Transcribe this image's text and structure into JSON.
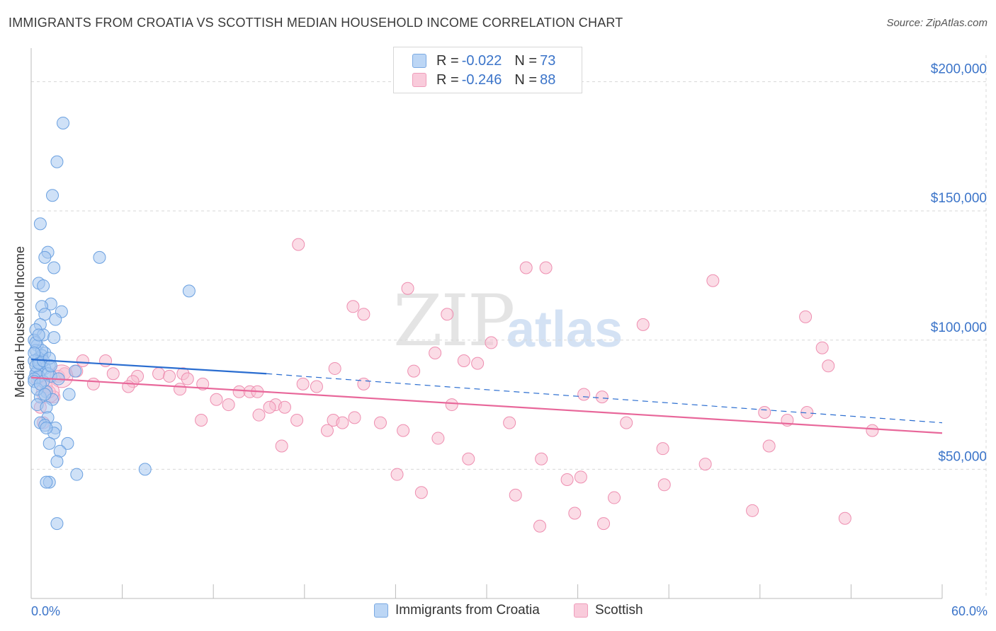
{
  "title": "IMMIGRANTS FROM CROATIA VS SCOTTISH MEDIAN HOUSEHOLD INCOME CORRELATION CHART",
  "source": "Source: ZipAtlas.com",
  "watermark": {
    "zip": "ZIP",
    "atlas": "atlas"
  },
  "legend": {
    "rows": [
      {
        "r_label": "R =",
        "r_value": "-0.022",
        "n_label": "N =",
        "n_value": "73"
      },
      {
        "r_label": "R =",
        "r_value": "-0.246",
        "n_label": "N =",
        "n_value": "88"
      }
    ]
  },
  "bottom_legend": [
    "Immigrants from Croatia",
    "Scottish"
  ],
  "colors": {
    "blue_fill": "#a8c8f0",
    "blue_stroke": "#6aa0e0",
    "blue_line": "#2a6dd0",
    "pink_fill": "#f7bfd2",
    "pink_stroke": "#ee8eb0",
    "pink_line": "#e8679a",
    "grid": "#d8d8d8",
    "axis_label": "#3b74c9"
  },
  "chart_data": {
    "type": "scatter",
    "title": "IMMIGRANTS FROM CROATIA VS SCOTTISH MEDIAN HOUSEHOLD INCOME CORRELATION CHART",
    "xlabel": "",
    "ylabel": "Median Household Income",
    "xlim": [
      0,
      60
    ],
    "ylim": [
      0,
      210000
    ],
    "x_tick_labels": [
      "0.0%",
      "60.0%"
    ],
    "y_ticks": [
      50000,
      100000,
      150000,
      200000
    ],
    "y_tick_labels": [
      "$50,000",
      "$100,000",
      "$150,000",
      "$200,000"
    ],
    "grid": true,
    "series": [
      {
        "name": "Immigrants from Croatia",
        "R": -0.022,
        "N": 73,
        "trend": {
          "x": [
            0,
            15.5
          ],
          "y": [
            92500,
            87000
          ],
          "dashed_to": [
            60,
            68000
          ]
        },
        "points": [
          [
            2.1,
            184000
          ],
          [
            1.7,
            169000
          ],
          [
            1.4,
            156000
          ],
          [
            0.6,
            145000
          ],
          [
            1.1,
            134000
          ],
          [
            0.9,
            132000
          ],
          [
            4.5,
            132000
          ],
          [
            1.5,
            128000
          ],
          [
            0.5,
            122000
          ],
          [
            0.8,
            121000
          ],
          [
            10.4,
            119000
          ],
          [
            1.3,
            114000
          ],
          [
            0.7,
            113000
          ],
          [
            2.0,
            111000
          ],
          [
            0.9,
            110000
          ],
          [
            1.6,
            108000
          ],
          [
            0.6,
            106000
          ],
          [
            0.3,
            104000
          ],
          [
            0.8,
            102000
          ],
          [
            1.5,
            101000
          ],
          [
            0.2,
            100000
          ],
          [
            0.4,
            98000
          ],
          [
            0.3,
            96000
          ],
          [
            0.9,
            95000
          ],
          [
            0.7,
            94000
          ],
          [
            0.5,
            93000
          ],
          [
            0.2,
            92000
          ],
          [
            0.6,
            91000
          ],
          [
            1.2,
            90000
          ],
          [
            0.9,
            89000
          ],
          [
            0.4,
            88000
          ],
          [
            2.9,
            88000
          ],
          [
            0.3,
            87000
          ],
          [
            1.3,
            86000
          ],
          [
            0.5,
            86000
          ],
          [
            0.2,
            85000
          ],
          [
            1.8,
            85000
          ],
          [
            0.8,
            84000
          ],
          [
            1.0,
            80000
          ],
          [
            2.5,
            79000
          ],
          [
            0.6,
            78000
          ],
          [
            1.4,
            77000
          ],
          [
            0.4,
            75000
          ],
          [
            1.0,
            74000
          ],
          [
            1.1,
            70000
          ],
          [
            0.6,
            68000
          ],
          [
            0.9,
            67000
          ],
          [
            1.6,
            66000
          ],
          [
            1.5,
            64000
          ],
          [
            1.2,
            60000
          ],
          [
            2.4,
            60000
          ],
          [
            1.9,
            57000
          ],
          [
            1.7,
            53000
          ],
          [
            7.5,
            50000
          ],
          [
            3.0,
            48000
          ],
          [
            1.2,
            45000
          ],
          [
            1.0,
            45000
          ],
          [
            1.7,
            29000
          ],
          [
            0.3,
            90000
          ],
          [
            0.5,
            91000
          ],
          [
            0.2,
            84000
          ],
          [
            0.8,
            92000
          ],
          [
            1.1,
            87000
          ],
          [
            0.4,
            81000
          ],
          [
            0.7,
            96000
          ],
          [
            0.3,
            99000
          ],
          [
            1.2,
            93000
          ],
          [
            0.6,
            83000
          ],
          [
            0.9,
            79000
          ],
          [
            1.0,
            66000
          ],
          [
            0.5,
            102000
          ],
          [
            0.2,
            95000
          ],
          [
            1.3,
            90000
          ]
        ]
      },
      {
        "name": "Scottish",
        "R": -0.246,
        "N": 88,
        "trend": {
          "x": [
            0,
            60
          ],
          "y": [
            85500,
            64000
          ]
        },
        "points": [
          [
            17.6,
            137000
          ],
          [
            32.6,
            128000
          ],
          [
            33.9,
            128000
          ],
          [
            24.8,
            120000
          ],
          [
            44.9,
            123000
          ],
          [
            21.2,
            113000
          ],
          [
            21.9,
            110000
          ],
          [
            27.4,
            110000
          ],
          [
            51.0,
            109000
          ],
          [
            40.3,
            106000
          ],
          [
            30.3,
            99000
          ],
          [
            52.1,
            97000
          ],
          [
            26.6,
            95000
          ],
          [
            28.5,
            92000
          ],
          [
            29.4,
            91000
          ],
          [
            52.5,
            90000
          ],
          [
            3.4,
            92000
          ],
          [
            4.9,
            92000
          ],
          [
            20.0,
            89000
          ],
          [
            25.2,
            88000
          ],
          [
            3.0,
            88000
          ],
          [
            8.4,
            87000
          ],
          [
            10.0,
            87000
          ],
          [
            5.4,
            87000
          ],
          [
            9.1,
            86000
          ],
          [
            7.0,
            86000
          ],
          [
            1.8,
            86000
          ],
          [
            6.7,
            84000
          ],
          [
            10.3,
            85000
          ],
          [
            4.1,
            83000
          ],
          [
            11.3,
            83000
          ],
          [
            17.9,
            83000
          ],
          [
            21.9,
            83000
          ],
          [
            18.8,
            82000
          ],
          [
            6.4,
            82000
          ],
          [
            9.8,
            81000
          ],
          [
            13.7,
            80000
          ],
          [
            14.4,
            80000
          ],
          [
            14.9,
            80000
          ],
          [
            36.4,
            79000
          ],
          [
            37.6,
            78000
          ],
          [
            12.2,
            77000
          ],
          [
            13.0,
            75000
          ],
          [
            16.1,
            75000
          ],
          [
            16.7,
            74000
          ],
          [
            15.7,
            74000
          ],
          [
            27.7,
            75000
          ],
          [
            48.3,
            72000
          ],
          [
            51.1,
            72000
          ],
          [
            15.0,
            71000
          ],
          [
            17.5,
            69000
          ],
          [
            19.9,
            69000
          ],
          [
            21.3,
            70000
          ],
          [
            23.0,
            68000
          ],
          [
            11.2,
            69000
          ],
          [
            20.5,
            68000
          ],
          [
            31.5,
            68000
          ],
          [
            39.2,
            68000
          ],
          [
            49.8,
            69000
          ],
          [
            19.5,
            65000
          ],
          [
            24.5,
            65000
          ],
          [
            26.8,
            62000
          ],
          [
            55.4,
            65000
          ],
          [
            16.5,
            59000
          ],
          [
            48.6,
            59000
          ],
          [
            41.6,
            58000
          ],
          [
            28.8,
            54000
          ],
          [
            33.6,
            54000
          ],
          [
            44.4,
            52000
          ],
          [
            24.1,
            48000
          ],
          [
            35.3,
            46000
          ],
          [
            36.2,
            47000
          ],
          [
            41.7,
            44000
          ],
          [
            25.7,
            41000
          ],
          [
            31.9,
            40000
          ],
          [
            38.4,
            39000
          ],
          [
            35.8,
            33000
          ],
          [
            47.5,
            34000
          ],
          [
            53.6,
            31000
          ],
          [
            33.5,
            28000
          ],
          [
            37.7,
            29000
          ],
          [
            1.0,
            82000
          ],
          [
            0.6,
            74000
          ],
          [
            1.5,
            78000
          ],
          [
            2.2,
            87000
          ],
          [
            0.8,
            68000
          ],
          [
            1.2,
            80000
          ],
          [
            0.4,
            85000
          ]
        ]
      }
    ]
  }
}
